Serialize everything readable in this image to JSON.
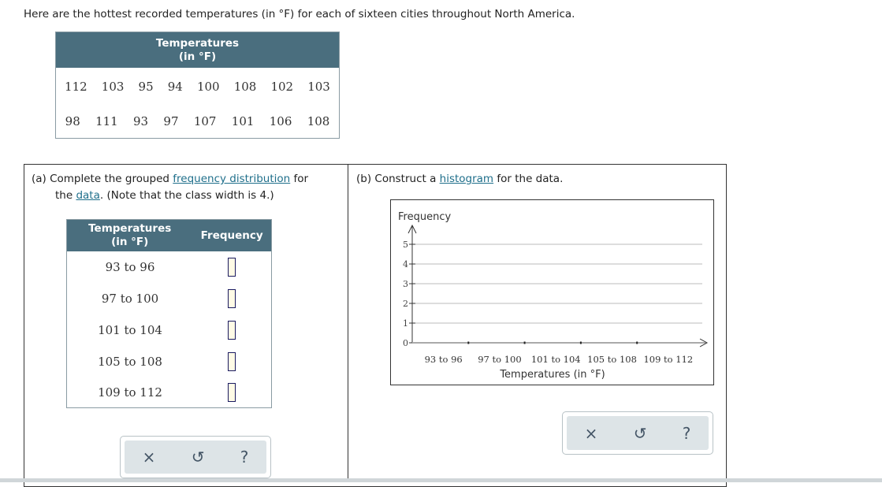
{
  "intro": "Here are the hottest recorded temperatures (in °F) for each of sixteen cities throughout North America.",
  "data_table": {
    "header_line1": "Temperatures",
    "header_line2": "(in °F)",
    "rows": [
      [
        "112",
        "103",
        "95",
        "94",
        "100",
        "108",
        "102",
        "103"
      ],
      [
        "98",
        "111",
        "93",
        "97",
        "107",
        "101",
        "106",
        "108"
      ]
    ]
  },
  "part_a": {
    "prefix": "(a) Complete the grouped ",
    "link1": "frequency distribution",
    "mid": " for",
    "line2_pre": "the ",
    "link2": "data",
    "suffix": ". (Note that the class width is 4.)",
    "table": {
      "col1_line1": "Temperatures",
      "col1_line2": "(in °F)",
      "col2": "Frequency",
      "rows": [
        {
          "class": "93 to 96",
          "frequency": ""
        },
        {
          "class": "97 to 100",
          "frequency": ""
        },
        {
          "class": "101 to 104",
          "frequency": ""
        },
        {
          "class": "105 to 108",
          "frequency": ""
        },
        {
          "class": "109 to 112",
          "frequency": ""
        }
      ]
    }
  },
  "part_b": {
    "prefix": "(b) Construct a ",
    "link": "histogram",
    "suffix": " for the data."
  },
  "buttons": {
    "clear": "×",
    "undo": "↺",
    "help": "?"
  },
  "chart_data": {
    "type": "bar",
    "categories": [
      "93 to 96",
      "97 to 100",
      "101 to 104",
      "105 to 108",
      "109 to 112"
    ],
    "values": [
      null,
      null,
      null,
      null,
      null
    ],
    "ylabel": "Frequency",
    "xlabel": "Temperatures (in °F)",
    "ylim": [
      0,
      5
    ],
    "yticks": [
      "0",
      "1",
      "2",
      "3",
      "4",
      "5"
    ],
    "grid": true
  }
}
